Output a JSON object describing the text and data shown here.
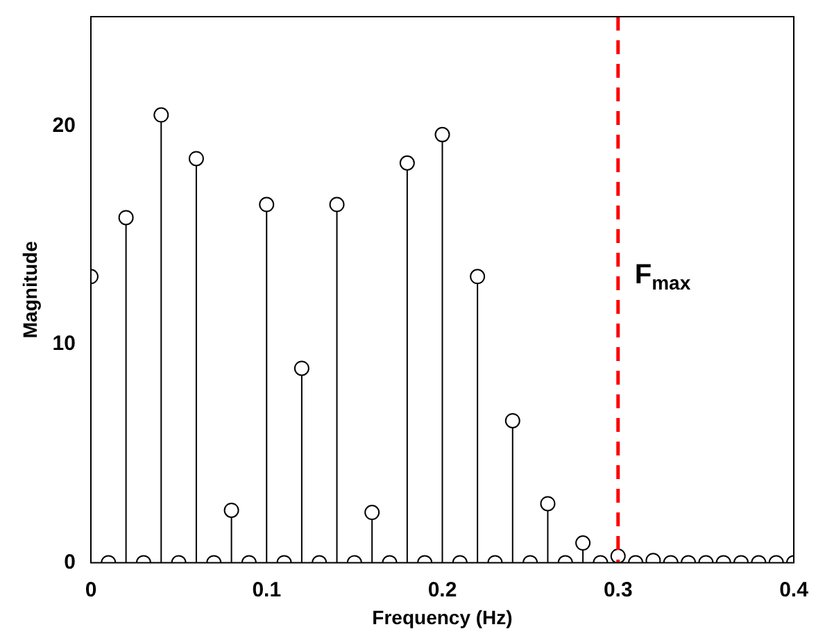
{
  "chart_data": {
    "type": "lollipop",
    "xlabel": "Frequency (Hz)",
    "ylabel": "Magnitude",
    "x": [
      0,
      0.01,
      0.02,
      0.03,
      0.04,
      0.05,
      0.06,
      0.07,
      0.08,
      0.09,
      0.1,
      0.11,
      0.12,
      0.13,
      0.14,
      0.15,
      0.16,
      0.17,
      0.18,
      0.19,
      0.2,
      0.21,
      0.22,
      0.23,
      0.24,
      0.25,
      0.26,
      0.27,
      0.28,
      0.29,
      0.3,
      0.31,
      0.32,
      0.33,
      0.34,
      0.35,
      0.36,
      0.37,
      0.38,
      0.39,
      0.4
    ],
    "values": [
      13.1,
      0,
      15.8,
      0,
      20.5,
      0,
      18.5,
      0,
      2.4,
      0,
      16.4,
      0,
      8.9,
      0,
      16.4,
      0,
      2.3,
      0,
      18.3,
      0,
      19.6,
      0,
      13.1,
      0,
      6.5,
      0,
      2.7,
      0,
      0.9,
      0,
      0.3,
      0,
      0.1,
      0,
      0,
      0,
      0,
      0,
      0,
      0,
      0
    ],
    "color": "#000000",
    "marker": "circle",
    "xlim": [
      0,
      0.4
    ],
    "xticks": [
      0,
      0.1,
      0.2,
      0.3,
      0.4
    ],
    "ylim": [
      0,
      25
    ],
    "yticks": [
      0,
      10,
      20
    ],
    "ref_lines": [
      {
        "axis": "x",
        "value": 0.3,
        "label": "F$_{max}$",
        "color": "#ff0000",
        "line_style": "dashed"
      }
    ]
  }
}
